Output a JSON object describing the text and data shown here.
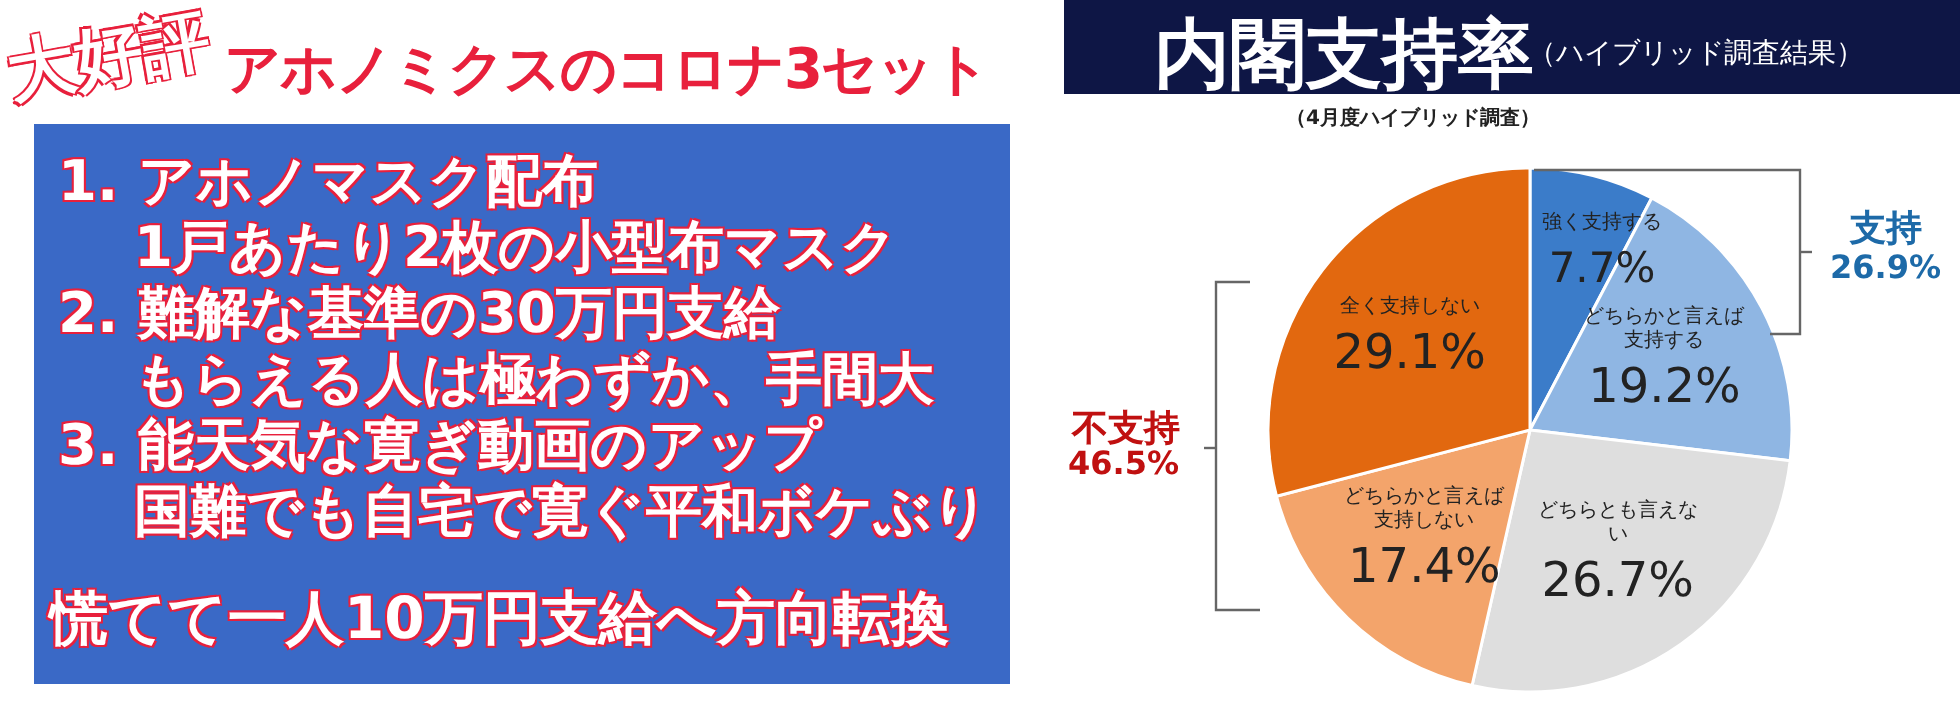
{
  "chart_data": [
    {
      "type": "other",
      "title": "大好評",
      "subtitle": "アホノミクスのコロナ3セット",
      "annotations": [
        "1. アホノマスク配布",
        "1戸あたり2枚の小型布マスク",
        "2. 難解な基準の30万円支給",
        "もらえる人は極わずか、手間大",
        "3. 能天気な寛ぎ動画のアップ",
        "国難でも自宅で寛ぐ平和ボケぶり",
        "慌てて一人10万円支給へ方向転換"
      ]
    },
    {
      "type": "pie",
      "title": "内閣支持率",
      "subtitle": "（ハイブリッド調査結果）",
      "categories": [
        "強く支持する",
        "どちらかと言えば支持する",
        "どちらとも言えない",
        "どちらかと言えば支持しない",
        "全く支持しない"
      ],
      "values": [
        7.7,
        19.2,
        26.7,
        17.4,
        29.1
      ],
      "value_labels": [
        "7.7%",
        "19.2%",
        "26.7%",
        "17.4%",
        "29.1%"
      ],
      "colors": [
        "#3b7cc9",
        "#8fb6e3",
        "#dedede",
        "#f3a46b",
        "#e2680f"
      ],
      "annotations": [
        "（4月度ハイブリッド調査）",
        "支持",
        "26.9%",
        "不支持",
        "46.5%"
      ]
    }
  ]
}
